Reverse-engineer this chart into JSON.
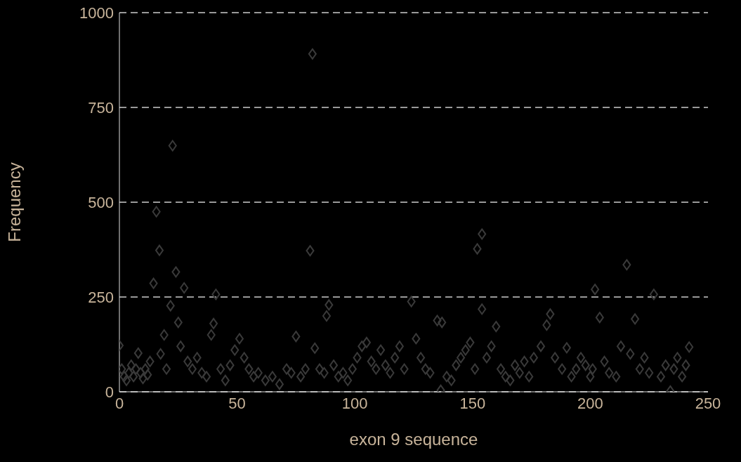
{
  "chart_data": {
    "type": "scatter",
    "xlabel": "exon 9 sequence",
    "ylabel": "Frequency",
    "x": [
      0,
      1,
      2,
      3,
      4,
      5,
      6,
      7,
      8,
      9,
      10,
      11,
      12,
      13,
      14.5,
      15.7,
      17,
      17.5,
      19,
      20,
      21.7,
      22.6,
      24,
      25,
      26,
      27.5,
      29,
      31,
      33,
      35,
      37,
      39,
      40,
      41,
      43,
      45,
      47,
      49,
      51,
      53,
      55,
      57,
      59,
      62,
      65,
      68,
      71,
      73,
      75,
      77,
      79,
      81,
      82,
      83,
      85,
      87,
      88,
      89,
      91,
      93,
      95,
      97,
      99,
      101,
      103,
      105,
      107,
      109,
      111,
      113,
      115,
      117,
      119,
      121,
      124,
      126,
      128,
      130,
      132,
      135,
      136.5,
      137,
      139,
      141,
      143,
      145,
      147,
      149,
      151,
      152,
      154,
      154,
      156,
      158,
      160,
      162,
      164,
      166,
      168,
      170,
      172,
      174,
      176,
      179,
      181.5,
      183,
      185,
      188,
      190,
      192,
      194,
      196,
      198,
      200,
      201,
      202,
      204,
      206,
      208,
      211,
      213,
      215.5,
      217,
      219,
      221,
      223,
      225,
      227,
      230,
      232,
      234,
      235.5,
      237,
      239,
      240.6,
      242
    ],
    "values": [
      122,
      60,
      40,
      30,
      50,
      70,
      40,
      60,
      102,
      50,
      35,
      60,
      45,
      80,
      286,
      475,
      373,
      100,
      150,
      60,
      227,
      649,
      316,
      183,
      120,
      274,
      80,
      60,
      90,
      50,
      40,
      150,
      180,
      257,
      60,
      30,
      70,
      110,
      140,
      90,
      60,
      40,
      50,
      30,
      40,
      20,
      60,
      50,
      146,
      40,
      60,
      372,
      891,
      115,
      60,
      50,
      200,
      229,
      70,
      40,
      50,
      30,
      60,
      90,
      120,
      130,
      80,
      60,
      110,
      70,
      50,
      90,
      120,
      60,
      238,
      140,
      90,
      60,
      50,
      188,
      4,
      183,
      40,
      30,
      70,
      90,
      110,
      130,
      60,
      377,
      416,
      218,
      90,
      120,
      172,
      60,
      40,
      30,
      70,
      50,
      80,
      40,
      90,
      120,
      176,
      205,
      90,
      60,
      116,
      40,
      60,
      90,
      70,
      40,
      60,
      270,
      196,
      80,
      50,
      40,
      120,
      335,
      100,
      192,
      60,
      90,
      50,
      257,
      40,
      70,
      2,
      60,
      90,
      40,
      70,
      118
    ],
    "color": "#3a3a3a",
    "marker": "diamond",
    "xlim": [
      0,
      250
    ],
    "xticks": [
      0,
      50,
      100,
      150,
      200,
      250
    ],
    "ylim": [
      0,
      1000
    ],
    "yticks": [
      0,
      250,
      500,
      750,
      1000
    ],
    "grid": "y"
  }
}
